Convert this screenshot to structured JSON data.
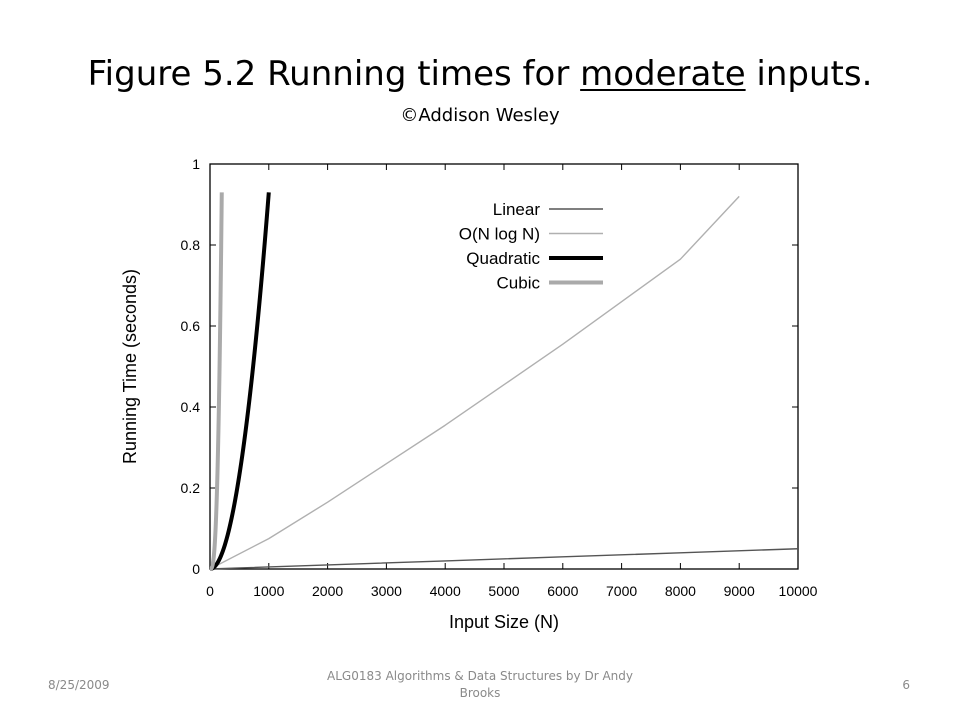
{
  "slide": {
    "title_part1": "Figure 5.2 Running times for ",
    "title_underlined": "moderate",
    "title_part2": " inputs.",
    "subtitle": "©Addison Wesley"
  },
  "footer": {
    "date": "8/25/2009",
    "course": "ALG0183 Algorithms & Data Structures by Dr Andy Brooks",
    "page_number": "6"
  },
  "chart_data": {
    "type": "line",
    "title": "",
    "xlabel": "Input Size (N)",
    "ylabel": "Running Time (seconds)",
    "xlim": [
      0,
      10000
    ],
    "ylim": [
      0,
      1
    ],
    "x_ticks": [
      "0",
      "1000",
      "2000",
      "3000",
      "4000",
      "5000",
      "6000",
      "7000",
      "8000",
      "9000",
      "10000"
    ],
    "y_ticks": [
      "0",
      "0.2",
      "0.4",
      "0.6",
      "0.8",
      "1"
    ],
    "grid": false,
    "legend_position": "top-center",
    "series": [
      {
        "name": "Linear",
        "color": "#555555",
        "x": [
          0,
          2000,
          4000,
          6000,
          8000,
          10000
        ],
        "y": [
          0,
          0.01,
          0.02,
          0.03,
          0.04,
          0.05
        ]
      },
      {
        "name": "O(N log N)",
        "color": "#b0b0b0",
        "x": [
          0,
          1000,
          2000,
          3000,
          4000,
          5000,
          6000,
          7000,
          8000,
          9000
        ],
        "y": [
          0,
          0.075,
          0.165,
          0.26,
          0.355,
          0.455,
          0.555,
          0.66,
          0.765,
          0.92
        ]
      },
      {
        "name": "Quadratic",
        "color": "#000000",
        "x": [
          0,
          200,
          400,
          600,
          800,
          1000
        ],
        "y": [
          0,
          0.037,
          0.148,
          0.333,
          0.592,
          0.93
        ]
      },
      {
        "name": "Cubic",
        "color": "#aaaaaa",
        "x": [
          0,
          50,
          100,
          150,
          200,
          250
        ],
        "y": [
          0,
          0.0145,
          0.116,
          0.392,
          0.93,
          0.93
        ]
      }
    ]
  }
}
